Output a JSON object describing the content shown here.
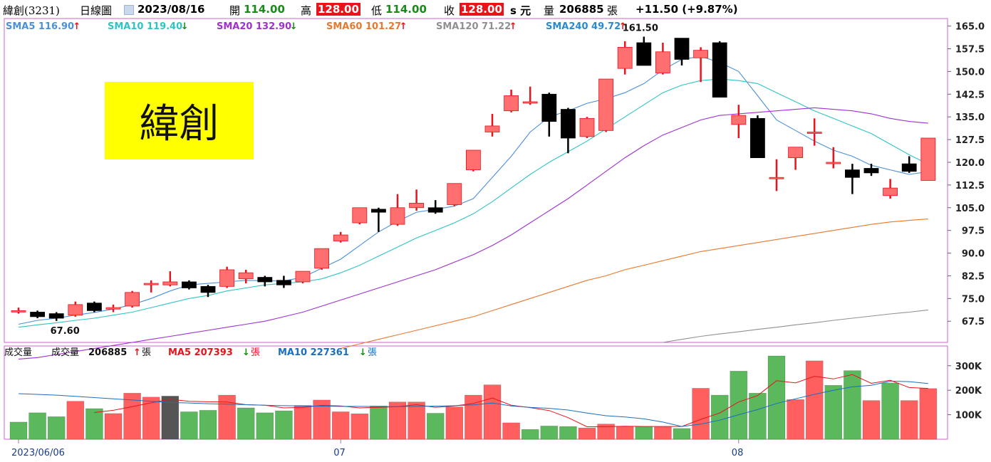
{
  "header": {
    "stock": "緯創(3231)",
    "period": "日線圖",
    "date": "2023/08/16",
    "open_label": "開",
    "open": "114.00",
    "high_label": "高",
    "high": "128.00",
    "low_label": "低",
    "low": "114.00",
    "close_label": "收",
    "close": "128.00",
    "unit": "s 元",
    "volume_label": "量",
    "volume": "206885",
    "volume_unit": "張",
    "change": "+11.50 (+9.87%)"
  },
  "title_box": {
    "text": "緯創",
    "color": "#ffff00"
  },
  "colors": {
    "up": "#ff6f6f",
    "up_wick": "#e8141c",
    "down": "#000000",
    "vol_up": "#ff5f5f",
    "vol_down": "#5cb85c",
    "vol_special": "#555555",
    "sma5": "#4a90d9",
    "sma10": "#2ec4c4",
    "sma20": "#a030d0",
    "sma60": "#e87830",
    "sma120": "#909090",
    "sma240": "#2a8ad0",
    "vma5": "#e8141c",
    "vma10": "#1a6fc0"
  },
  "legend": [
    {
      "label": "SMA5",
      "value": "116.90",
      "dir": "up",
      "color": "#4a90d9"
    },
    {
      "label": "SMA10",
      "value": "119.40",
      "dir": "down",
      "color": "#2ec4c4"
    },
    {
      "label": "SMA20",
      "value": "132.90",
      "dir": "down",
      "color": "#a030d0"
    },
    {
      "label": "SMA60",
      "value": "101.27",
      "dir": "up",
      "color": "#e87830"
    },
    {
      "label": "SMA120",
      "value": "71.22",
      "dir": "up",
      "color": "#909090"
    },
    {
      "label": "SMA240",
      "value": "49.72",
      "dir": "up",
      "color": "#2a8ad0"
    }
  ],
  "volume_legend": {
    "panel_label": "成交量",
    "vol_label": "成交量",
    "vol_value": "206885",
    "vol_dir": "up",
    "vol_unit": "張",
    "ma5_label": "MA5",
    "ma5_value": "207393",
    "ma5_dir": "down",
    "ma5_unit": "張",
    "ma10_label": "MA10",
    "ma10_value": "227361",
    "ma10_dir": "down",
    "ma10_unit": "張"
  },
  "chart_data": {
    "type": "candlestick",
    "price_ticks": [
      67.5,
      75.0,
      82.5,
      90.0,
      97.5,
      105.0,
      112.5,
      120.0,
      127.5,
      135.0,
      142.5,
      150.0,
      157.5,
      165.0
    ],
    "price_ylim": [
      60.5,
      167.5
    ],
    "volume_ticks": [
      100000,
      200000,
      300000
    ],
    "volume_tick_labels": [
      "100K",
      "200K",
      "300K"
    ],
    "volume_ylim": [
      0,
      340000
    ],
    "x_labels": [
      {
        "index": 0,
        "text": "2023/06/06"
      },
      {
        "index": 17,
        "text": "07"
      },
      {
        "index": 38,
        "text": "08"
      }
    ],
    "annotations": [
      {
        "index": 2,
        "price": 67.6,
        "text": "67.60",
        "pos": "below"
      },
      {
        "index": 33,
        "price": 161.5,
        "text": "161.50",
        "pos": "above"
      }
    ],
    "candles": [
      {
        "o": 71.0,
        "h": 72.0,
        "l": 70.0,
        "c": 71.0
      },
      {
        "o": 70.5,
        "h": 71.0,
        "l": 68.5,
        "c": 69.0
      },
      {
        "o": 70.0,
        "h": 70.5,
        "l": 67.6,
        "c": 68.5
      },
      {
        "o": 69.5,
        "h": 74.0,
        "l": 69.0,
        "c": 73.0
      },
      {
        "o": 73.5,
        "h": 74.0,
        "l": 70.5,
        "c": 71.0
      },
      {
        "o": 71.5,
        "h": 73.0,
        "l": 70.5,
        "c": 72.0
      },
      {
        "o": 72.5,
        "h": 77.5,
        "l": 72.0,
        "c": 77.0
      },
      {
        "o": 80.0,
        "h": 81.0,
        "l": 77.0,
        "c": 80.0
      },
      {
        "o": 79.5,
        "h": 84.0,
        "l": 79.0,
        "c": 80.5
      },
      {
        "o": 80.5,
        "h": 81.0,
        "l": 78.0,
        "c": 78.5
      },
      {
        "o": 79.0,
        "h": 79.5,
        "l": 75.5,
        "c": 77.0
      },
      {
        "o": 79.0,
        "h": 85.5,
        "l": 78.5,
        "c": 84.5
      },
      {
        "o": 81.5,
        "h": 84.5,
        "l": 80.0,
        "c": 83.5
      },
      {
        "o": 82.0,
        "h": 82.5,
        "l": 79.0,
        "c": 80.5
      },
      {
        "o": 81.0,
        "h": 82.5,
        "l": 78.5,
        "c": 79.5
      },
      {
        "o": 80.5,
        "h": 84.0,
        "l": 80.0,
        "c": 84.0
      },
      {
        "o": 85.0,
        "h": 91.5,
        "l": 84.5,
        "c": 91.5
      },
      {
        "o": 94.0,
        "h": 97.0,
        "l": 93.5,
        "c": 96.0
      },
      {
        "o": 100.0,
        "h": 105.0,
        "l": 99.5,
        "c": 105.0
      },
      {
        "o": 104.5,
        "h": 105.0,
        "l": 97.0,
        "c": 103.5
      },
      {
        "o": 99.5,
        "h": 109.5,
        "l": 99.0,
        "c": 105.0
      },
      {
        "o": 105.0,
        "h": 111.0,
        "l": 104.0,
        "c": 106.5
      },
      {
        "o": 105.0,
        "h": 107.5,
        "l": 103.0,
        "c": 103.5
      },
      {
        "o": 106.0,
        "h": 113.0,
        "l": 105.5,
        "c": 113.0
      },
      {
        "o": 117.5,
        "h": 124.0,
        "l": 117.0,
        "c": 124.0
      },
      {
        "o": 130.0,
        "h": 136.0,
        "l": 128.5,
        "c": 132.0
      },
      {
        "o": 137.0,
        "h": 144.0,
        "l": 136.5,
        "c": 142.0
      },
      {
        "o": 140.0,
        "h": 145.0,
        "l": 139.0,
        "c": 140.0
      },
      {
        "o": 142.5,
        "h": 143.0,
        "l": 128.5,
        "c": 133.5
      },
      {
        "o": 137.5,
        "h": 138.0,
        "l": 123.0,
        "c": 128.0
      },
      {
        "o": 128.5,
        "h": 135.0,
        "l": 128.0,
        "c": 134.5
      },
      {
        "o": 130.5,
        "h": 147.5,
        "l": 130.0,
        "c": 147.5
      },
      {
        "o": 151.0,
        "h": 160.0,
        "l": 149.0,
        "c": 158.0
      },
      {
        "o": 159.5,
        "h": 161.5,
        "l": 152.0,
        "c": 152.0
      },
      {
        "o": 149.5,
        "h": 159.5,
        "l": 149.0,
        "c": 156.5
      },
      {
        "o": 161.0,
        "h": 161.0,
        "l": 152.0,
        "c": 154.0
      },
      {
        "o": 154.5,
        "h": 158.0,
        "l": 146.5,
        "c": 157.0
      },
      {
        "o": 159.5,
        "h": 160.0,
        "l": 141.5,
        "c": 141.5
      },
      {
        "o": 132.5,
        "h": 139.0,
        "l": 128.0,
        "c": 135.5
      },
      {
        "o": 134.5,
        "h": 135.5,
        "l": 121.5,
        "c": 121.5
      },
      {
        "o": 115.0,
        "h": 121.0,
        "l": 110.5,
        "c": 115.0
      },
      {
        "o": 121.5,
        "h": 125.0,
        "l": 117.5,
        "c": 125.0
      },
      {
        "o": 130.0,
        "h": 134.5,
        "l": 125.5,
        "c": 130.0
      },
      {
        "o": 120.0,
        "h": 125.0,
        "l": 118.0,
        "c": 120.0
      },
      {
        "o": 117.5,
        "h": 119.5,
        "l": 109.5,
        "c": 115.0
      },
      {
        "o": 118.0,
        "h": 119.5,
        "l": 115.5,
        "c": 116.5
      },
      {
        "o": 109.0,
        "h": 114.5,
        "l": 108.0,
        "c": 111.5
      },
      {
        "o": 119.5,
        "h": 122.0,
        "l": 116.5,
        "c": 117.0
      },
      {
        "o": 114.0,
        "h": 128.0,
        "l": 114.0,
        "c": 128.0
      }
    ],
    "volume": [
      {
        "v": 70000,
        "color": "down"
      },
      {
        "v": 108000,
        "color": "down"
      },
      {
        "v": 92000,
        "color": "down"
      },
      {
        "v": 155000,
        "color": "up"
      },
      {
        "v": 125000,
        "color": "down"
      },
      {
        "v": 105000,
        "color": "up"
      },
      {
        "v": 188000,
        "color": "up"
      },
      {
        "v": 172000,
        "color": "up"
      },
      {
        "v": 176000,
        "color": "special"
      },
      {
        "v": 112000,
        "color": "down"
      },
      {
        "v": 118000,
        "color": "down"
      },
      {
        "v": 180000,
        "color": "up"
      },
      {
        "v": 128000,
        "color": "down"
      },
      {
        "v": 108000,
        "color": "down"
      },
      {
        "v": 116000,
        "color": "down"
      },
      {
        "v": 138000,
        "color": "up"
      },
      {
        "v": 160000,
        "color": "up"
      },
      {
        "v": 112000,
        "color": "up"
      },
      {
        "v": 104000,
        "color": "up"
      },
      {
        "v": 136000,
        "color": "down"
      },
      {
        "v": 152000,
        "color": "up"
      },
      {
        "v": 152000,
        "color": "up"
      },
      {
        "v": 106000,
        "color": "down"
      },
      {
        "v": 132000,
        "color": "up"
      },
      {
        "v": 180000,
        "color": "up"
      },
      {
        "v": 222000,
        "color": "up"
      },
      {
        "v": 67000,
        "color": "up"
      },
      {
        "v": 40000,
        "color": "down"
      },
      {
        "v": 54000,
        "color": "down"
      },
      {
        "v": 52000,
        "color": "down"
      },
      {
        "v": 46000,
        "color": "up"
      },
      {
        "v": 62000,
        "color": "up"
      },
      {
        "v": 52000,
        "color": "up"
      },
      {
        "v": 52000,
        "color": "down"
      },
      {
        "v": 50000,
        "color": "up"
      },
      {
        "v": 44000,
        "color": "down"
      },
      {
        "v": 208000,
        "color": "up"
      },
      {
        "v": 180000,
        "color": "down"
      },
      {
        "v": 278000,
        "color": "down"
      },
      {
        "v": 188000,
        "color": "down"
      },
      {
        "v": 340000,
        "color": "down"
      },
      {
        "v": 162000,
        "color": "up"
      },
      {
        "v": 320000,
        "color": "up"
      },
      {
        "v": 220000,
        "color": "down"
      },
      {
        "v": 280000,
        "color": "down"
      },
      {
        "v": 158000,
        "color": "up"
      },
      {
        "v": 230000,
        "color": "down"
      },
      {
        "v": 158000,
        "color": "up"
      },
      {
        "v": 206885,
        "color": "up"
      }
    ],
    "series": [
      {
        "name": "SMA5",
        "color": "#4a90d9",
        "values": [
          66.5,
          67.8,
          68.5,
          69.5,
          70.4,
          71.5,
          73.0,
          75.0,
          77.5,
          79.5,
          80.0,
          80.5,
          81.0,
          80.9,
          80.8,
          82.0,
          85.0,
          88.0,
          92.5,
          97.0,
          100.5,
          103.5,
          104.5,
          105.5,
          108.0,
          115.0,
          122.0,
          130.0,
          135.0,
          137.0,
          139.5,
          141.0,
          143.0,
          146.0,
          150.5,
          154.0,
          155.0,
          153.0,
          150.0,
          142.0,
          134.0,
          130.5,
          127.0,
          124.0,
          122.0,
          119.0,
          117.5,
          116.0,
          116.9
        ]
      },
      {
        "name": "SMA10",
        "color": "#2ec4c4",
        "values": [
          65.5,
          66.3,
          67.0,
          67.8,
          68.5,
          69.5,
          70.5,
          72.0,
          73.5,
          75.0,
          76.0,
          77.5,
          78.5,
          79.5,
          80.0,
          80.5,
          81.5,
          83.5,
          86.0,
          89.0,
          92.0,
          95.0,
          97.5,
          100.0,
          103.0,
          107.0,
          111.5,
          116.0,
          120.0,
          123.5,
          127.0,
          131.0,
          135.0,
          139.0,
          143.0,
          145.5,
          147.0,
          147.5,
          147.0,
          146.0,
          143.0,
          140.0,
          137.0,
          134.5,
          132.0,
          129.5,
          126.0,
          122.5,
          119.4
        ]
      },
      {
        "name": "SMA20",
        "color": "#a030d0",
        "values": [
          55.0,
          55.5,
          56.5,
          57.5,
          58.5,
          59.5,
          60.5,
          61.5,
          62.5,
          63.5,
          64.5,
          65.5,
          66.5,
          67.5,
          69.0,
          70.5,
          72.5,
          74.5,
          76.5,
          78.5,
          80.5,
          82.5,
          84.5,
          87.0,
          89.5,
          92.5,
          96.0,
          100.0,
          104.0,
          108.0,
          112.5,
          117.0,
          121.5,
          125.5,
          129.0,
          131.5,
          134.0,
          135.5,
          136.0,
          136.5,
          137.0,
          137.5,
          138.0,
          137.5,
          137.0,
          136.0,
          134.5,
          133.5,
          132.9
        ]
      },
      {
        "name": "SMA60",
        "color": "#e87830",
        "values": [
          null,
          null,
          null,
          null,
          null,
          null,
          null,
          null,
          null,
          null,
          null,
          null,
          null,
          null,
          null,
          null,
          null,
          58.5,
          60.0,
          61.5,
          63.0,
          64.5,
          66.0,
          67.5,
          69.0,
          71.0,
          73.0,
          75.0,
          77.0,
          79.0,
          81.0,
          82.5,
          84.5,
          86.0,
          87.5,
          89.0,
          90.5,
          91.5,
          92.5,
          93.5,
          94.5,
          95.5,
          96.5,
          97.5,
          98.5,
          99.5,
          100.3,
          100.8,
          101.27
        ]
      },
      {
        "name": "SMA120",
        "color": "#909090",
        "values": [
          null,
          null,
          null,
          null,
          null,
          null,
          null,
          null,
          null,
          null,
          null,
          null,
          null,
          null,
          null,
          null,
          null,
          null,
          null,
          null,
          null,
          null,
          null,
          null,
          null,
          null,
          null,
          null,
          null,
          null,
          null,
          null,
          null,
          null,
          60.5,
          61.5,
          62.5,
          63.3,
          64.0,
          64.8,
          65.5,
          66.3,
          67.0,
          67.8,
          68.5,
          69.2,
          69.9,
          70.5,
          71.22
        ]
      }
    ],
    "volume_series": [
      {
        "name": "MA5",
        "color": "#e8141c",
        "values": [
          null,
          null,
          null,
          null,
          109000,
          118000,
          133000,
          149000,
          163000,
          155000,
          153000,
          152000,
          141000,
          139000,
          128000,
          130000,
          138000,
          136000,
          128000,
          130000,
          133000,
          141000,
          130000,
          136000,
          146000,
          168000,
          139000,
          129000,
          117000,
          88000,
          51000,
          51000,
          53000,
          52000,
          52000,
          52000,
          81000,
          107000,
          152000,
          178000,
          239000,
          230000,
          257000,
          246000,
          264000,
          228000,
          241000,
          211000,
          207393
        ]
      },
      {
        "name": "MA10",
        "color": "#1a6fc0",
        "values": [
          186000,
          183000,
          180000,
          175000,
          170000,
          165000,
          160000,
          155000,
          150000,
          148000,
          145000,
          143000,
          141000,
          139000,
          137000,
          136000,
          135000,
          134000,
          134000,
          133000,
          133000,
          134000,
          135000,
          137000,
          140000,
          148000,
          136000,
          130000,
          126000,
          119000,
          107000,
          96000,
          91000,
          83000,
          70000,
          52000,
          62000,
          78000,
          100000,
          121000,
          146000,
          165000,
          183000,
          200000,
          214000,
          220000,
          237000,
          235000,
          227361
        ]
      }
    ]
  }
}
